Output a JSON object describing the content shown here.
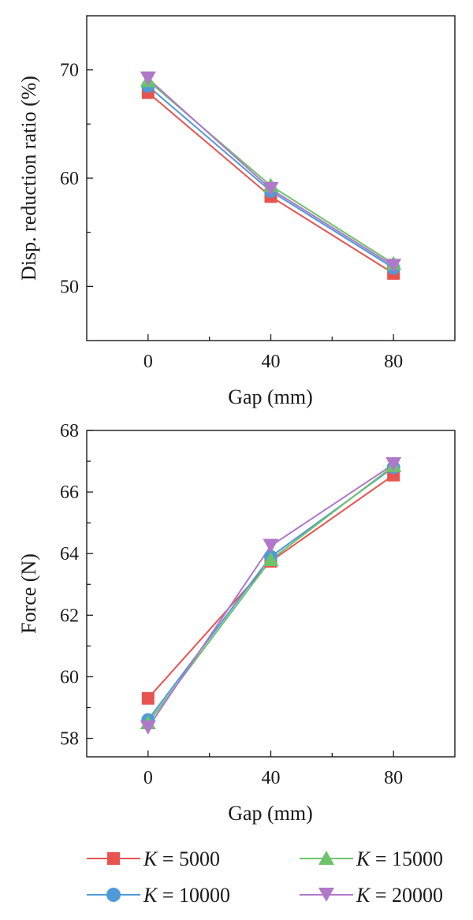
{
  "legend": {
    "items": [
      {
        "prefix": "K",
        "suffix": " = 5000",
        "color": "#e8534f",
        "marker": "square"
      },
      {
        "prefix": "K",
        "suffix": " = 10000",
        "color": "#4f9ad8",
        "marker": "circle"
      },
      {
        "prefix": "K",
        "suffix": " = 15000",
        "color": "#6cc36a",
        "marker": "triangle-up"
      },
      {
        "prefix": "K",
        "suffix": " = 20000",
        "color": "#b078c8",
        "marker": "triangle-down"
      }
    ]
  },
  "chart_data": [
    {
      "type": "line",
      "xlabel": "Gap (mm)",
      "ylabel": "Disp. reduction ratio (%)",
      "x": [
        0,
        40,
        80
      ],
      "x_ticks": [
        "0",
        "40",
        "80"
      ],
      "y_ticks": [
        "50",
        "60",
        "70"
      ],
      "xlim": [
        -20,
        100
      ],
      "ylim": [
        45,
        75
      ],
      "series": [
        {
          "name": "K = 5000",
          "values": [
            67.9,
            58.3,
            51.2
          ]
        },
        {
          "name": "K = 10000",
          "values": [
            68.5,
            58.8,
            51.7
          ]
        },
        {
          "name": "K = 15000",
          "values": [
            69.0,
            59.3,
            52.1
          ]
        },
        {
          "name": "K = 20000",
          "values": [
            69.2,
            59.0,
            51.9
          ]
        }
      ]
    },
    {
      "type": "line",
      "xlabel": "Gap (mm)",
      "ylabel": "Force (N)",
      "x": [
        0,
        40,
        80
      ],
      "x_ticks": [
        "0",
        "40",
        "80"
      ],
      "y_ticks": [
        "58",
        "60",
        "62",
        "64",
        "66",
        "68"
      ],
      "xlim": [
        -20,
        100
      ],
      "ylim": [
        57.4,
        68
      ],
      "series": [
        {
          "name": "K = 5000",
          "values": [
            59.3,
            63.75,
            66.55
          ]
        },
        {
          "name": "K = 10000",
          "values": [
            58.6,
            63.9,
            66.8
          ]
        },
        {
          "name": "K = 15000",
          "values": [
            58.5,
            63.8,
            66.85
          ]
        },
        {
          "name": "K = 20000",
          "values": [
            58.35,
            64.25,
            66.9
          ]
        }
      ]
    }
  ]
}
